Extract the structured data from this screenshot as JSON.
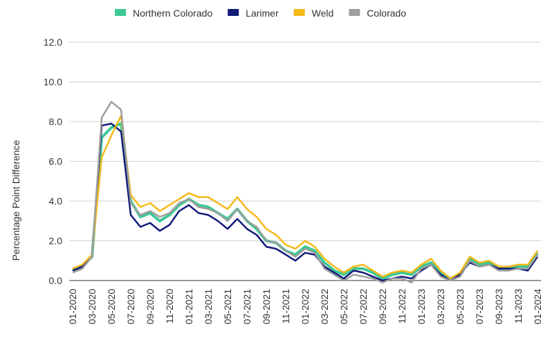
{
  "chart_data": {
    "type": "line",
    "y_label": "Percentage Point Difference",
    "categories": [
      "01-2020",
      null,
      "03-2020",
      null,
      "05-2020",
      null,
      "07-2020",
      null,
      "09-2020",
      null,
      "11-2020",
      null,
      "01-2021",
      null,
      "03-2021",
      null,
      "05-2021",
      null,
      "07-2021",
      null,
      "09-2021",
      null,
      "11-2021",
      null,
      "01-2022",
      null,
      "03-2022",
      null,
      "05-2022",
      null,
      "07-2022",
      null,
      "09-2022",
      null,
      "11-2022",
      null,
      "01-2023",
      null,
      "03-2023",
      null,
      "05-2023",
      null,
      "07-2023",
      null,
      "09-2023",
      null,
      "11-2023",
      null,
      "01-2024"
    ],
    "series": [
      {
        "name": "Northern Colorado",
        "color": "#3dc995",
        "values": [
          0.5,
          0.7,
          1.2,
          7.2,
          7.7,
          7.9,
          4.0,
          3.2,
          3.4,
          3.0,
          3.3,
          3.8,
          4.1,
          3.8,
          3.7,
          3.4,
          3.1,
          3.6,
          3.0,
          2.6,
          2.0,
          1.9,
          1.5,
          1.3,
          1.7,
          1.5,
          0.9,
          0.5,
          0.3,
          0.6,
          0.6,
          0.4,
          0.1,
          0.3,
          0.4,
          0.3,
          0.7,
          0.9,
          0.4,
          0.1,
          0.3,
          1.1,
          0.8,
          0.9,
          0.6,
          0.6,
          0.7,
          0.7,
          1.4
        ]
      },
      {
        "name": "Larimer",
        "color": "#111a78",
        "values": [
          0.5,
          0.7,
          1.2,
          7.8,
          7.9,
          7.5,
          3.3,
          2.7,
          2.9,
          2.5,
          2.8,
          3.5,
          3.8,
          3.4,
          3.3,
          3.0,
          2.6,
          3.1,
          2.6,
          2.3,
          1.7,
          1.6,
          1.3,
          1.0,
          1.4,
          1.3,
          0.7,
          0.4,
          0.1,
          0.5,
          0.4,
          0.2,
          0.0,
          0.1,
          0.2,
          0.1,
          0.5,
          0.8,
          0.3,
          0.0,
          0.3,
          0.9,
          0.7,
          0.8,
          0.6,
          0.6,
          0.6,
          0.5,
          1.2
        ]
      },
      {
        "name": "Weld",
        "color": "#f5b918",
        "values": [
          0.6,
          0.8,
          1.3,
          6.2,
          7.3,
          8.3,
          4.3,
          3.7,
          3.9,
          3.5,
          3.8,
          4.1,
          4.4,
          4.2,
          4.2,
          3.9,
          3.6,
          4.2,
          3.6,
          3.2,
          2.6,
          2.3,
          1.8,
          1.6,
          2.0,
          1.7,
          1.1,
          0.7,
          0.4,
          0.7,
          0.8,
          0.5,
          0.2,
          0.4,
          0.5,
          0.4,
          0.8,
          1.1,
          0.5,
          0.1,
          0.4,
          1.2,
          0.9,
          1.0,
          0.7,
          0.7,
          0.8,
          0.8,
          1.5
        ]
      },
      {
        "name": "Colorado",
        "color": "#9e9e9e",
        "values": [
          0.4,
          0.6,
          1.2,
          8.2,
          9.0,
          8.6,
          3.9,
          3.3,
          3.5,
          3.2,
          3.4,
          3.9,
          4.1,
          3.7,
          3.6,
          3.4,
          3.0,
          3.6,
          3.0,
          2.7,
          2.0,
          1.9,
          1.5,
          1.2,
          1.6,
          1.4,
          0.6,
          0.3,
          0.0,
          0.3,
          0.2,
          0.1,
          -0.1,
          0.1,
          0.1,
          -0.1,
          0.6,
          0.8,
          0.2,
          0.0,
          0.2,
          1.0,
          0.7,
          0.8,
          0.5,
          0.5,
          0.6,
          0.6,
          1.3
        ]
      }
    ],
    "ylim": [
      0,
      12
    ],
    "yticks": [
      {
        "value": 0,
        "label": "0.0"
      },
      {
        "value": 2,
        "label": "2.0"
      },
      {
        "value": 4,
        "label": "4.0"
      },
      {
        "value": 6,
        "label": "6.0"
      },
      {
        "value": 8,
        "label": "8.0"
      },
      {
        "value": 10,
        "label": "10.0"
      },
      {
        "value": 12,
        "label": "12.0"
      }
    ],
    "grid": true,
    "legend": "top"
  }
}
